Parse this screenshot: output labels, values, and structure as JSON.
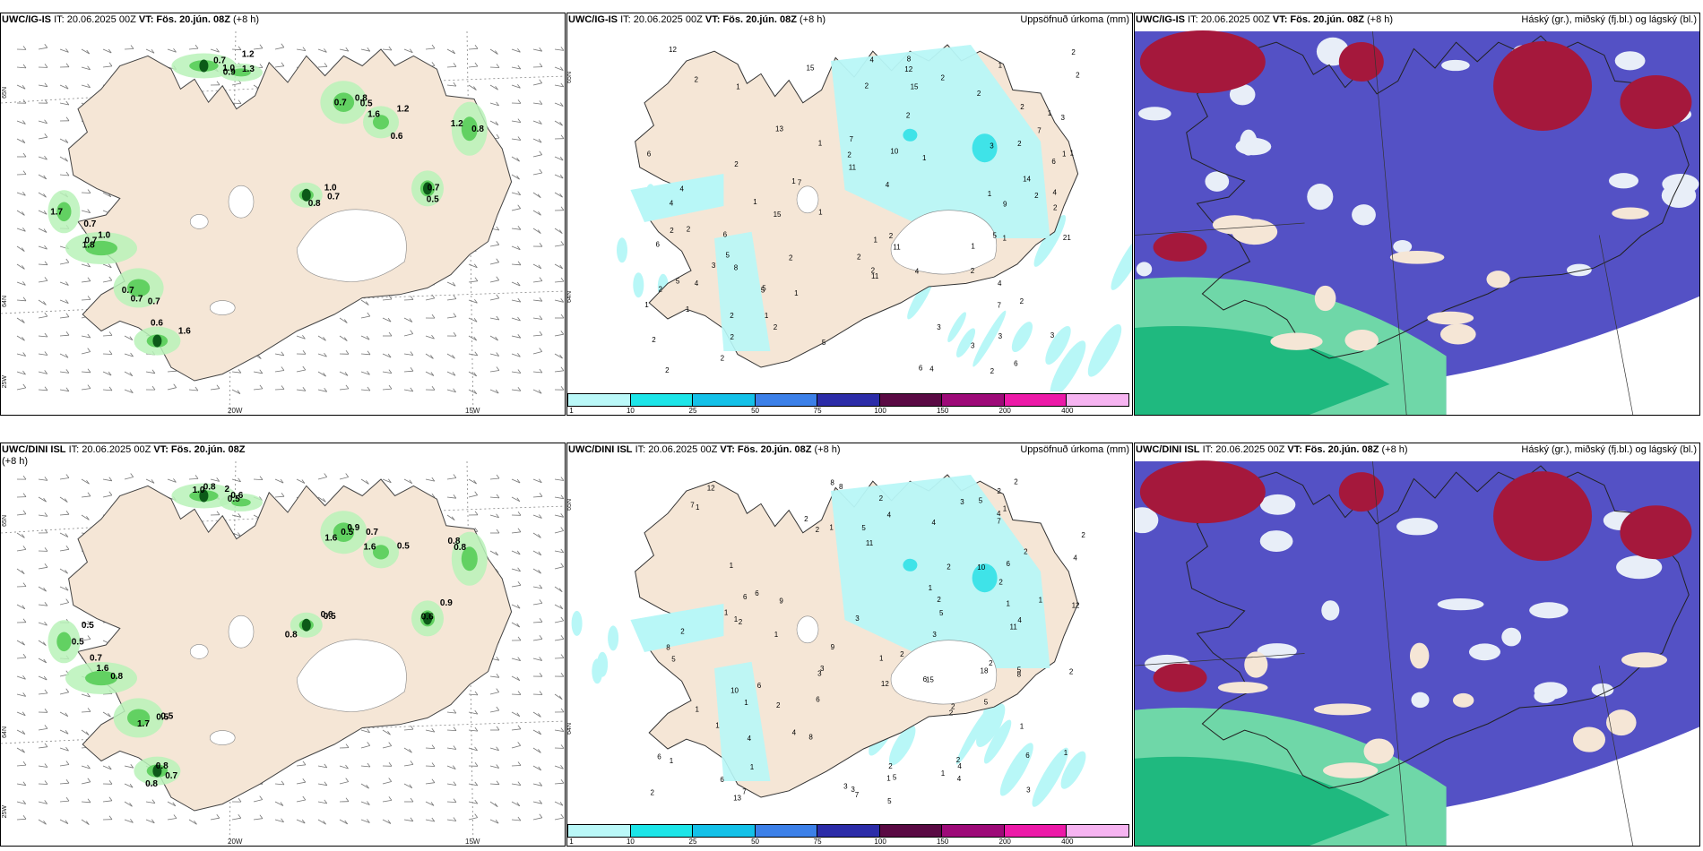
{
  "colors": {
    "land": "#f5e6d6",
    "sea": "#ffffff",
    "green_light": "#b9f2b9",
    "green_mid": "#62d162",
    "green_dark": "#0c5a18",
    "cyan_light": "#b8f7f7",
    "cyan_mid": "#3fe3e8",
    "high_cloud": "#a5183c",
    "mid_cloud": "#5451c5",
    "low_cloud": "#6fd7a8",
    "low_cloud_dark": "#1fb97f",
    "cloud_edge": "#e8eef8"
  },
  "legend_colors": [
    "#baf8f8",
    "#1de5e8",
    "#14c1e8",
    "#3c80e8",
    "#2c2ca8",
    "#5a0a44",
    "#9d0a78",
    "#ec1aa8",
    "#f6b4f1"
  ],
  "legend_ticks": [
    "1",
    "10",
    "25",
    "50",
    "75",
    "100",
    "150",
    "200",
    "400"
  ],
  "panels": {
    "p1": {
      "model": "UWC/IG-IS",
      "it": "IT: 20.06.2025 00Z",
      "vt": "VT: Fös. 20.jún. 08Z",
      "lead": "(+8 h)"
    },
    "p2": {
      "model": "UWC/IG-IS",
      "it": "IT: 20.06.2025 00Z",
      "vt": "VT: Fös. 20.jún. 08Z",
      "lead": "(+8 h)",
      "right": "Uppsöfnuð úrkoma (mm)"
    },
    "p3": {
      "model": "UWC/IG-IS",
      "it": "IT: 20.06.2025 00Z",
      "vt": "VT: Fös. 20.jún. 08Z",
      "lead": "(+8 h)",
      "right": "Háský (gr.), miðský (fj.bl.) og lágský (bl.)"
    },
    "p4": {
      "model": "UWC/DINI ISL",
      "it": "IT: 20.06.2025 00Z",
      "vt": "VT: Fös. 20.jún. 08Z",
      "lead": "(+8 h)"
    },
    "p5": {
      "model": "UWC/DINI ISL",
      "it": "IT: 20.06.2025 00Z",
      "vt": "VT: Fös. 20.jún. 08Z",
      "lead": "(+8 h)",
      "right": "Uppsöfnuð úrkoma (mm)"
    },
    "p6": {
      "model": "UWC/DINI ISL",
      "it": "IT: 20.06.2025 00Z",
      "vt": "VT: Fös. 20.jún. 08Z",
      "lead": "(+8 h)",
      "right": "Háský (gr.), miðský (fj.bl.) og lágský (bl.)"
    }
  },
  "axis": {
    "lon": [
      "20W",
      "15W"
    ],
    "lat": [
      "65N",
      "64N",
      "25W"
    ]
  },
  "wind_values": {
    "top": [
      "0.9",
      "0.5",
      "1.2",
      "1.0",
      "1.0",
      "0.7",
      "1.6",
      "1.7",
      "0.8",
      "0.5",
      "1.2",
      "0.7",
      "0.8",
      "0.6",
      "0.8",
      "0.7",
      "0.7",
      "0.6",
      "0.7",
      "1.2",
      "0.7",
      "1.3",
      "1.0",
      "0.7",
      "1.6",
      "0.7",
      "1.8",
      "0.7"
    ],
    "bottom": [
      "2",
      "0.5",
      "1.6",
      "0.5",
      "1.6",
      "1.7",
      "0.8",
      "0.5",
      "0.8",
      "0.6",
      "0.6",
      "0.8",
      "0.9",
      "0.5",
      "0.6",
      "0.7",
      "0.5",
      "0.8",
      "0.5",
      "0.8",
      "0.9",
      "0.5",
      "1.0",
      "1.6",
      "0.7",
      "0.8",
      "0.8",
      "0.5",
      "0.7"
    ]
  },
  "precip_values": {
    "top": [
      "6",
      "7",
      "5",
      "5",
      "4",
      "11",
      "7",
      "1",
      "11",
      "6",
      "6",
      "7",
      "3",
      "6",
      "6",
      "1",
      "4",
      "1",
      "5",
      "9",
      "15",
      "12",
      "14",
      "13",
      "21",
      "2",
      "2",
      "1",
      "3",
      "4",
      "15",
      "15",
      "12",
      "11",
      "2",
      "10",
      "2",
      "3",
      "2",
      "8",
      "5",
      "7",
      "2",
      "1",
      "2",
      "2",
      "2",
      "1",
      "3",
      "2",
      "4",
      "4",
      "2",
      "6",
      "5",
      "1",
      "5",
      "4",
      "1",
      "2",
      "1",
      "3",
      "2",
      "2",
      "2",
      "2",
      "1",
      "2",
      "2",
      "2",
      "2",
      "3",
      "2",
      "8",
      "1",
      "2",
      "4",
      "3",
      "1",
      "2",
      "1",
      "2",
      "1",
      "2",
      "2",
      "2",
      "2",
      "4",
      "4",
      "1",
      "2",
      "1",
      "1",
      "1"
    ],
    "bottom": [
      "5",
      "8",
      "9",
      "6",
      "8",
      "7",
      "5",
      "6",
      "4",
      "4",
      "4",
      "2",
      "1",
      "6",
      "6",
      "6",
      "8",
      "7",
      "1",
      "1",
      "4",
      "1",
      "2",
      "10",
      "2",
      "2",
      "3",
      "12",
      "3",
      "6",
      "4",
      "15",
      "1",
      "4",
      "11",
      "1",
      "2",
      "2",
      "6",
      "6",
      "13",
      "2",
      "1",
      "2",
      "2",
      "5",
      "9",
      "10",
      "2",
      "2",
      "2",
      "7",
      "11",
      "12",
      "18",
      "1",
      "3",
      "1",
      "2",
      "12",
      "4",
      "3",
      "5",
      "5",
      "2",
      "1",
      "5",
      "3",
      "1",
      "1",
      "1",
      "8",
      "5",
      "3",
      "8",
      "1",
      "6",
      "1",
      "2",
      "2",
      "3",
      "4",
      "2",
      "1",
      "1",
      "2",
      "3",
      "2",
      "7",
      "2",
      "1",
      "2",
      "1",
      "1",
      "4",
      "5"
    ]
  }
}
